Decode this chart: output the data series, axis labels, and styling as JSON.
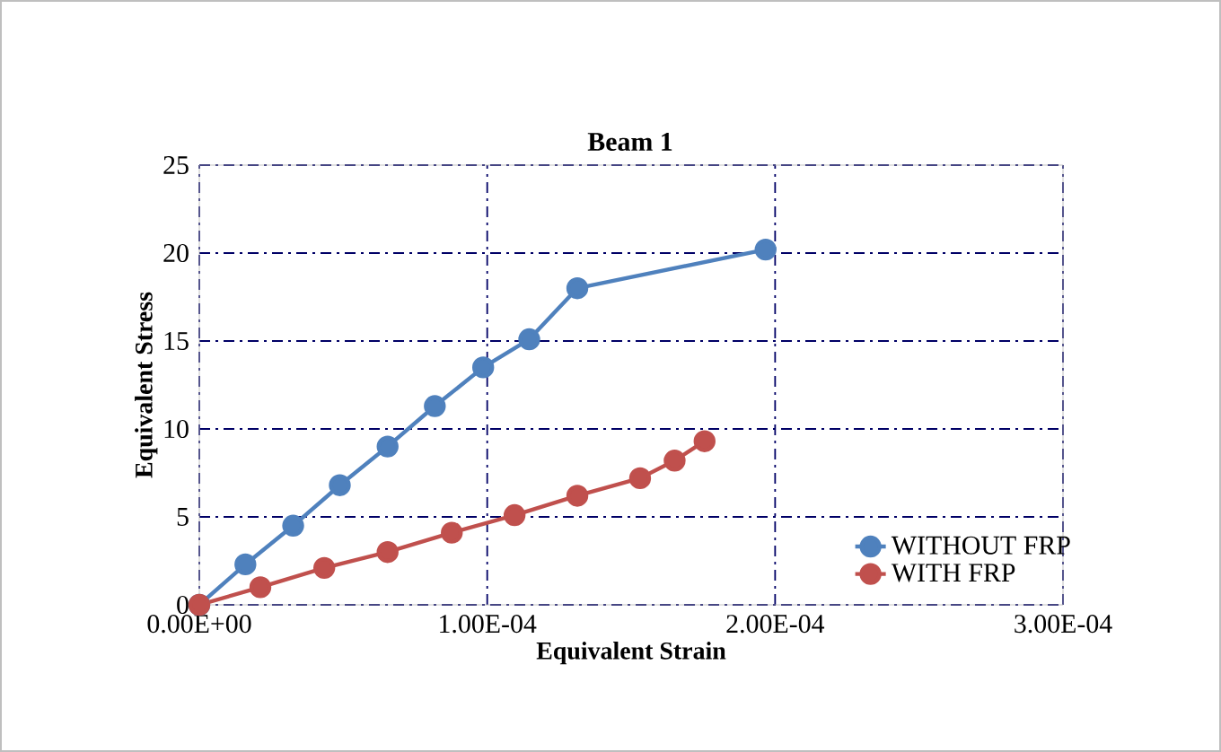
{
  "chart_data": {
    "type": "line",
    "title": "Beam 1",
    "xlabel": "Equivalent Strain",
    "ylabel": "Equivalent Stress",
    "series": [
      {
        "name": "WITHOUT FRP",
        "color": "#4f81bd",
        "x": [
          0,
          1.6e-05,
          3.26e-05,
          4.88e-05,
          6.54e-05,
          8.18e-05,
          9.86e-05,
          0.0001146,
          0.0001313,
          0.0001967
        ],
        "values": [
          0,
          2.3,
          4.5,
          6.8,
          9.0,
          11.3,
          13.5,
          15.1,
          18.0,
          20.2
        ]
      },
      {
        "name": "WITH FRP",
        "color": "#c0504d",
        "x": [
          0,
          2.12e-05,
          4.34e-05,
          6.54e-05,
          8.77e-05,
          0.0001095,
          0.0001313,
          0.0001531,
          0.0001651,
          0.0001755
        ],
        "values": [
          0,
          1.0,
          2.1,
          3.0,
          4.1,
          5.1,
          6.2,
          7.2,
          8.2,
          9.3
        ]
      }
    ],
    "xlim": [
      0,
      0.0003
    ],
    "ylim": [
      0,
      25
    ],
    "xticks": [
      {
        "value": 0,
        "label": "0.00E+00"
      },
      {
        "value": 0.0001,
        "label": "1.00E-04"
      },
      {
        "value": 0.0002,
        "label": "2.00E-04"
      },
      {
        "value": 0.0003,
        "label": "3.00E-04"
      }
    ],
    "yticks": [
      0,
      5,
      10,
      15,
      20,
      25
    ],
    "grid": true,
    "legend": "bottom right",
    "marker": "circle",
    "line_style": "solid"
  }
}
